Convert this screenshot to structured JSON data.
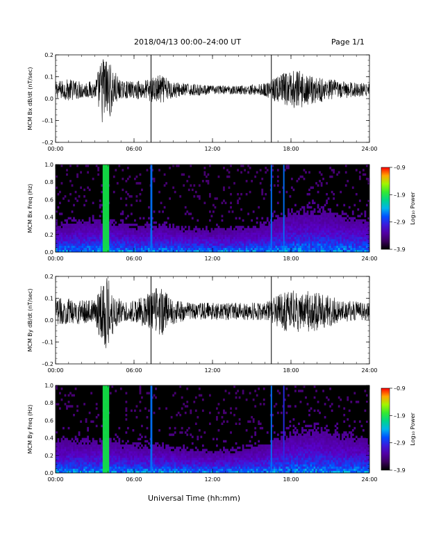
{
  "header": {
    "title": "2018/04/13   00:00–24:00 UT",
    "page": "Page 1/1"
  },
  "chart_data": [
    {
      "type": "line",
      "ylabel": "MCM Bx dB/dt (nT/sec)",
      "xlim": [
        0,
        24
      ],
      "ylim": [
        -0.2,
        0.2
      ],
      "x_ticks": [
        "00:00",
        "06:00",
        "12:00",
        "18:00",
        "24:00"
      ],
      "y_ticks": [
        "0.2",
        "0.1",
        "0.0",
        "–0.1",
        "–0.2"
      ],
      "baseline": 0.04,
      "markers_hours": [
        7.3,
        16.5
      ],
      "envelope": [
        {
          "x": 0.0,
          "amp": 0.04
        },
        {
          "x": 1.0,
          "amp": 0.05
        },
        {
          "x": 2.0,
          "amp": 0.04
        },
        {
          "x": 3.0,
          "amp": 0.04
        },
        {
          "x": 3.7,
          "amp": 0.18
        },
        {
          "x": 4.2,
          "amp": 0.12
        },
        {
          "x": 5.0,
          "amp": 0.04
        },
        {
          "x": 6.0,
          "amp": 0.04
        },
        {
          "x": 7.0,
          "amp": 0.05
        },
        {
          "x": 8.0,
          "amp": 0.07
        },
        {
          "x": 9.0,
          "amp": 0.04
        },
        {
          "x": 10.0,
          "amp": 0.03
        },
        {
          "x": 12.0,
          "amp": 0.02
        },
        {
          "x": 14.0,
          "amp": 0.02
        },
        {
          "x": 16.0,
          "amp": 0.03
        },
        {
          "x": 17.5,
          "amp": 0.08
        },
        {
          "x": 18.5,
          "amp": 0.09
        },
        {
          "x": 20.0,
          "amp": 0.06
        },
        {
          "x": 22.0,
          "amp": 0.04
        },
        {
          "x": 24.0,
          "amp": 0.03
        }
      ]
    },
    {
      "type": "heatmap",
      "ylabel": "MCM Bx Freq (Hz)",
      "colorbar_label": "Log₁₀ Power",
      "colorbar_ticks": [
        "–0.9",
        "–1.9",
        "–2.9",
        "–3.9"
      ],
      "clim": [
        -3.9,
        -0.9
      ],
      "xlim": [
        0,
        24
      ],
      "ylim": [
        0,
        1.0
      ],
      "x_ticks": [
        "00:00",
        "06:00",
        "12:00",
        "18:00",
        "24:00"
      ],
      "y_ticks": [
        "1.0",
        "0.8",
        "0.6",
        "0.4",
        "0.2",
        "0.0"
      ],
      "bands": [
        {
          "start": 3.6,
          "end": 4.1,
          "level": -1.9
        },
        {
          "start": 7.25,
          "end": 7.4,
          "level": -2.6
        },
        {
          "start": 16.45,
          "end": 16.55,
          "level": -2.6
        },
        {
          "start": 17.4,
          "end": 17.5,
          "level": -2.6
        }
      ],
      "activity": [
        {
          "x": 0,
          "v": 0.5
        },
        {
          "x": 2,
          "v": 0.6
        },
        {
          "x": 4,
          "v": 0.6
        },
        {
          "x": 6,
          "v": 0.45
        },
        {
          "x": 8,
          "v": 0.5
        },
        {
          "x": 10,
          "v": 0.4
        },
        {
          "x": 12,
          "v": 0.35
        },
        {
          "x": 14,
          "v": 0.4
        },
        {
          "x": 16,
          "v": 0.5
        },
        {
          "x": 18,
          "v": 0.8
        },
        {
          "x": 20,
          "v": 0.85
        },
        {
          "x": 22,
          "v": 0.7
        },
        {
          "x": 24,
          "v": 0.6
        }
      ]
    },
    {
      "type": "line",
      "ylabel": "MCM By dB/dt (nT/sec)",
      "xlim": [
        0,
        24
      ],
      "ylim": [
        -0.2,
        0.2
      ],
      "x_ticks": [
        "00:00",
        "06:00",
        "12:00",
        "18:00",
        "24:00"
      ],
      "y_ticks": [
        "0.2",
        "0.1",
        "0.0",
        "–0.1",
        "–0.2"
      ],
      "baseline": 0.04,
      "markers_hours": [
        7.3,
        16.5
      ],
      "envelope": [
        {
          "x": 0.0,
          "amp": 0.06
        },
        {
          "x": 1.0,
          "amp": 0.06
        },
        {
          "x": 2.0,
          "amp": 0.06
        },
        {
          "x": 3.0,
          "amp": 0.05
        },
        {
          "x": 3.7,
          "amp": 0.19
        },
        {
          "x": 4.2,
          "amp": 0.13
        },
        {
          "x": 5.0,
          "amp": 0.05
        },
        {
          "x": 6.0,
          "amp": 0.05
        },
        {
          "x": 7.0,
          "amp": 0.08
        },
        {
          "x": 8.0,
          "amp": 0.12
        },
        {
          "x": 9.0,
          "amp": 0.06
        },
        {
          "x": 10.0,
          "amp": 0.04
        },
        {
          "x": 12.0,
          "amp": 0.04
        },
        {
          "x": 14.0,
          "amp": 0.04
        },
        {
          "x": 16.0,
          "amp": 0.04
        },
        {
          "x": 17.5,
          "amp": 0.09
        },
        {
          "x": 18.5,
          "amp": 0.1
        },
        {
          "x": 20.0,
          "amp": 0.09
        },
        {
          "x": 22.0,
          "amp": 0.05
        },
        {
          "x": 24.0,
          "amp": 0.04
        }
      ]
    },
    {
      "type": "heatmap",
      "ylabel": "MCM By Freq (Hz)",
      "colorbar_label": "Log₁₀ Power",
      "colorbar_ticks": [
        "–0.9",
        "–1.9",
        "–2.9",
        "–3.9"
      ],
      "clim": [
        -3.9,
        -0.9
      ],
      "xlim": [
        0,
        24
      ],
      "ylim": [
        0,
        1.0
      ],
      "x_ticks": [
        "00:00",
        "06:00",
        "12:00",
        "18:00",
        "24:00"
      ],
      "y_ticks": [
        "1.0",
        "0.8",
        "0.6",
        "0.4",
        "0.2",
        "0.0"
      ],
      "bands": [
        {
          "start": 3.6,
          "end": 4.1,
          "level": -1.9
        },
        {
          "start": 7.25,
          "end": 7.4,
          "level": -2.6
        },
        {
          "start": 16.45,
          "end": 16.55,
          "level": -2.6
        },
        {
          "start": 17.4,
          "end": 17.5,
          "level": -2.9
        }
      ],
      "activity": [
        {
          "x": 0,
          "v": 0.6
        },
        {
          "x": 2,
          "v": 0.6
        },
        {
          "x": 4,
          "v": 0.6
        },
        {
          "x": 6,
          "v": 0.5
        },
        {
          "x": 8,
          "v": 0.5
        },
        {
          "x": 10,
          "v": 0.4
        },
        {
          "x": 12,
          "v": 0.35
        },
        {
          "x": 14,
          "v": 0.4
        },
        {
          "x": 16,
          "v": 0.5
        },
        {
          "x": 18,
          "v": 0.85
        },
        {
          "x": 20,
          "v": 0.9
        },
        {
          "x": 22,
          "v": 0.75
        },
        {
          "x": 24,
          "v": 0.6
        }
      ]
    }
  ],
  "xlabel": "Universal Time (hh:mm)"
}
